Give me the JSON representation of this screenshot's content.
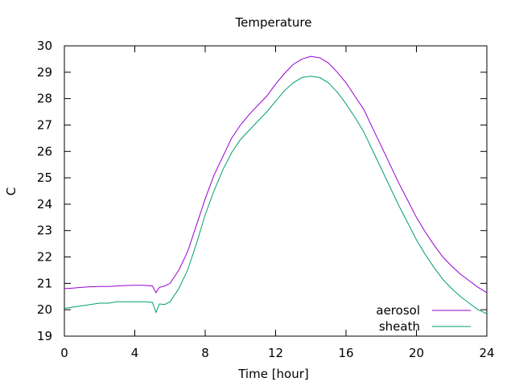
{
  "chart_data": {
    "type": "line",
    "title": "Temperature",
    "xlabel": "Time [hour]",
    "ylabel": "C",
    "xlim": [
      0,
      24
    ],
    "ylim": [
      19,
      30
    ],
    "xticks": [
      0,
      4,
      8,
      12,
      16,
      20,
      24
    ],
    "yticks": [
      19,
      20,
      21,
      22,
      23,
      24,
      25,
      26,
      27,
      28,
      29,
      30
    ],
    "grid": false,
    "legend": {
      "position": "bottom-right"
    },
    "series": [
      {
        "name": "aerosol",
        "color": "#9400d3",
        "x": [
          0,
          0.5,
          1,
          1.5,
          2,
          2.5,
          3,
          3.5,
          4,
          4.5,
          5,
          5.2,
          5.4,
          5.7,
          6,
          6.5,
          7,
          7.5,
          8,
          8.5,
          9,
          9.5,
          10,
          10.5,
          11,
          11.5,
          12,
          12.5,
          13,
          13.5,
          14,
          14.5,
          15,
          15.5,
          16,
          16.5,
          17,
          17.5,
          18,
          18.5,
          19,
          19.5,
          20,
          20.5,
          21,
          21.5,
          22,
          22.5,
          23,
          23.5,
          24
        ],
        "values": [
          20.8,
          20.82,
          20.85,
          20.87,
          20.88,
          20.88,
          20.9,
          20.92,
          20.93,
          20.93,
          20.9,
          20.65,
          20.85,
          20.9,
          21.0,
          21.5,
          22.2,
          23.2,
          24.2,
          25.1,
          25.8,
          26.5,
          27.0,
          27.4,
          27.75,
          28.1,
          28.55,
          28.95,
          29.3,
          29.5,
          29.6,
          29.55,
          29.35,
          29.0,
          28.6,
          28.1,
          27.6,
          26.9,
          26.2,
          25.5,
          24.8,
          24.15,
          23.5,
          22.95,
          22.45,
          22.0,
          21.65,
          21.35,
          21.1,
          20.85,
          20.65
        ]
      },
      {
        "name": "sheath",
        "color": "#009e73",
        "x": [
          0,
          0.5,
          1,
          1.5,
          2,
          2.5,
          3,
          3.5,
          4,
          4.5,
          5,
          5.2,
          5.4,
          5.7,
          6,
          6.5,
          7,
          7.5,
          8,
          8.5,
          9,
          9.5,
          10,
          10.5,
          11,
          11.5,
          12,
          12.5,
          13,
          13.5,
          14,
          14.5,
          15,
          15.5,
          16,
          16.5,
          17,
          17.5,
          18,
          18.5,
          19,
          19.5,
          20,
          20.5,
          21,
          21.5,
          22,
          22.5,
          23,
          23.5,
          24
        ],
        "values": [
          20.05,
          20.1,
          20.15,
          20.2,
          20.25,
          20.25,
          20.3,
          20.3,
          20.3,
          20.3,
          20.28,
          19.9,
          20.22,
          20.2,
          20.3,
          20.8,
          21.5,
          22.5,
          23.6,
          24.5,
          25.3,
          25.95,
          26.45,
          26.8,
          27.15,
          27.5,
          27.9,
          28.3,
          28.6,
          28.8,
          28.85,
          28.8,
          28.6,
          28.25,
          27.8,
          27.3,
          26.75,
          26.05,
          25.35,
          24.65,
          23.95,
          23.3,
          22.65,
          22.1,
          21.6,
          21.15,
          20.8,
          20.5,
          20.25,
          20.0,
          19.85
        ]
      }
    ]
  }
}
